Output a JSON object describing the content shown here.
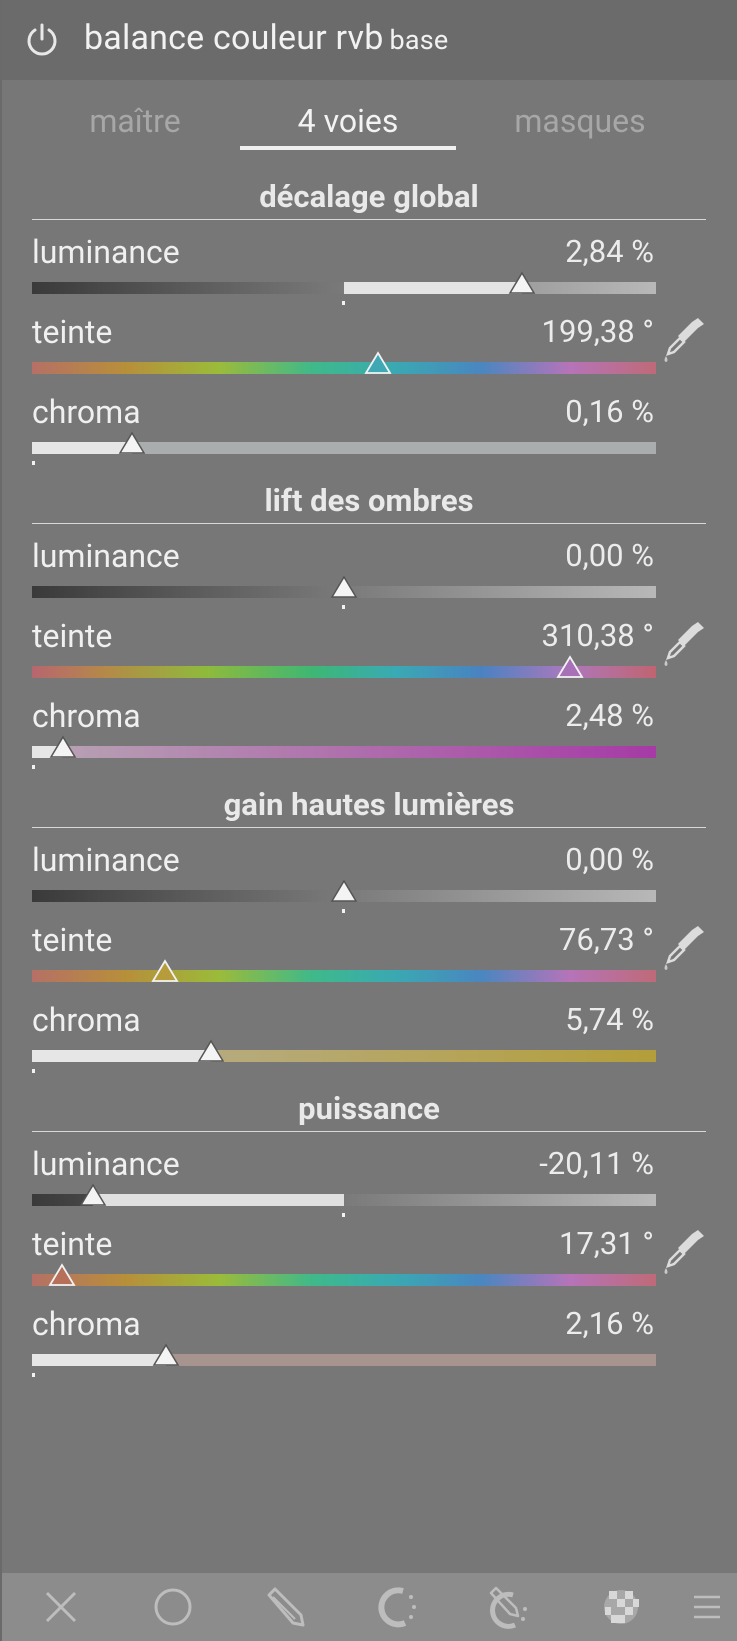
{
  "module": {
    "title": "balance couleur rvb",
    "subtitle": "base",
    "power_icon": "power-icon"
  },
  "tabs": [
    {
      "label": "maître",
      "active": false
    },
    {
      "label": "4 voies",
      "active": true
    },
    {
      "label": "masques",
      "active": false
    }
  ],
  "sections": [
    {
      "title": "décalage global",
      "sliders": [
        {
          "label": "luminance",
          "value": "2,84 %",
          "position": 0.785
        },
        {
          "label": "teinte",
          "value": "199,38 °",
          "position": 0.554,
          "picker": true
        },
        {
          "label": "chroma",
          "value": "0,16 %",
          "position": 0.16
        }
      ]
    },
    {
      "title": "lift des ombres",
      "sliders": [
        {
          "label": "luminance",
          "value": "0,00 %",
          "position": 0.5
        },
        {
          "label": "teinte",
          "value": "310,38 °",
          "position": 0.862,
          "picker": true
        },
        {
          "label": "chroma",
          "value": "2,48 %",
          "position": 0.05
        }
      ]
    },
    {
      "title": "gain hautes lumières",
      "sliders": [
        {
          "label": "luminance",
          "value": "0,00 %",
          "position": 0.5
        },
        {
          "label": "teinte",
          "value": "76,73 °",
          "position": 0.213,
          "picker": true
        },
        {
          "label": "chroma",
          "value": "5,74 %",
          "position": 0.287
        }
      ]
    },
    {
      "title": "puissance",
      "sliders": [
        {
          "label": "luminance",
          "value": "-20,11 %",
          "position": 0.098
        },
        {
          "label": "teinte",
          "value": "17,31 °",
          "position": 0.048,
          "picker": true
        },
        {
          "label": "chroma",
          "value": "2,16 %",
          "position": 0.215
        }
      ]
    }
  ],
  "toolbar": {
    "icons": [
      "close-icon",
      "circle-icon",
      "pencil-icon",
      "brush-icon",
      "pencil-brush-icon",
      "checkerboard-icon",
      "menu-icon"
    ]
  },
  "colors": {
    "background": "#777777",
    "header": "#6b6b6b",
    "toolbar": "#8c8c8c",
    "text": "#f0f0f0",
    "inactive_tab": "#a7a7a7"
  }
}
